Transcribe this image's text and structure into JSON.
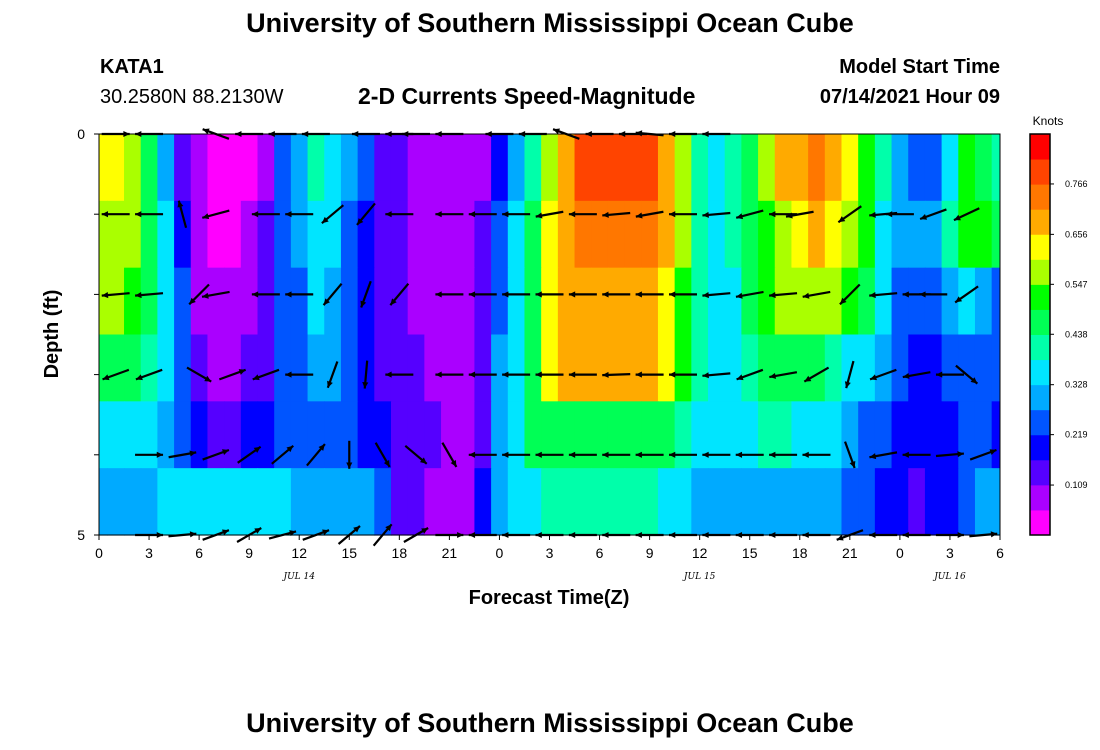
{
  "header": {
    "title": "University of Southern Mississippi Ocean Cube",
    "station": "KATA1",
    "coordinates": "30.2580N  88.2130W",
    "subtitle": "2-D Currents Speed-Magnitude",
    "model_start_label": "Model Start Time",
    "model_start_value": "07/14/2021 Hour 09"
  },
  "footer": {
    "title": "University of Southern Mississippi Ocean Cube"
  },
  "chart_data": {
    "type": "heatmap",
    "title": "2-D Currents Speed-Magnitude",
    "xlabel": "Forecast Time(Z)",
    "ylabel": "Depth (ft)",
    "x_ticks": [
      "0",
      "3",
      "6",
      "9",
      "12",
      "15",
      "18",
      "21",
      "0",
      "3",
      "6",
      "9",
      "12",
      "15",
      "18",
      "21",
      "0",
      "3",
      "6"
    ],
    "x_range_hours": [
      9,
      63
    ],
    "y_ticks": [
      "0",
      "5"
    ],
    "y_range": [
      0,
      5
    ],
    "date_labels": [
      {
        "text": "JUL 14",
        "hour": 21
      },
      {
        "text": "JUL 15",
        "hour": 45
      },
      {
        "text": "JUL 16",
        "hour": 60
      }
    ],
    "colorbar": {
      "title": "Knots",
      "ticks": [
        "0.766",
        "0.656",
        "0.547",
        "0.438",
        "0.328",
        "0.219",
        "0.109"
      ],
      "range": [
        0.0,
        0.875
      ],
      "colors": [
        "#ff00ff",
        "#aa00ff",
        "#5500ff",
        "#0000ff",
        "#0055ff",
        "#00aaff",
        "#00e5ff",
        "#00ffaa",
        "#00ff55",
        "#00ff00",
        "#aaff00",
        "#ffff00",
        "#ffaa00",
        "#ff7700",
        "#ff4400",
        "#ff0000"
      ]
    },
    "hours": [
      9,
      10,
      11,
      12,
      13,
      14,
      15,
      16,
      17,
      18,
      19,
      20,
      21,
      22,
      23,
      24,
      25,
      26,
      27,
      28,
      29,
      30,
      31,
      32,
      33,
      34,
      35,
      36,
      37,
      38,
      39,
      40,
      41,
      42,
      43,
      44,
      45,
      46,
      47,
      48,
      49,
      50,
      51,
      52,
      53,
      54,
      55,
      56,
      57,
      58,
      59,
      60,
      61,
      62,
      63
    ],
    "depth_bins": [
      0,
      1,
      2,
      3,
      4,
      5
    ],
    "speed_knots": [
      [
        0.62,
        0.62,
        0.55,
        0.45,
        0.32,
        0.15,
        0.06,
        0.02,
        0.02,
        0.04,
        0.1,
        0.22,
        0.3,
        0.4,
        0.35,
        0.28,
        0.22,
        0.16,
        0.12,
        0.1,
        0.09,
        0.08,
        0.08,
        0.1,
        0.2,
        0.3,
        0.42,
        0.58,
        0.7,
        0.78,
        0.8,
        0.82,
        0.82,
        0.78,
        0.7,
        0.58,
        0.42,
        0.35,
        0.4,
        0.48,
        0.56,
        0.66,
        0.7,
        0.72,
        0.7,
        0.64,
        0.54,
        0.4,
        0.28,
        0.22,
        0.22,
        0.35,
        0.5,
        0.48,
        0.42
      ],
      [
        0.6,
        0.6,
        0.55,
        0.46,
        0.34,
        0.18,
        0.08,
        0.04,
        0.04,
        0.06,
        0.12,
        0.22,
        0.28,
        0.36,
        0.33,
        0.26,
        0.2,
        0.15,
        0.12,
        0.1,
        0.09,
        0.08,
        0.08,
        0.12,
        0.24,
        0.34,
        0.45,
        0.62,
        0.7,
        0.72,
        0.72,
        0.74,
        0.74,
        0.72,
        0.68,
        0.55,
        0.42,
        0.36,
        0.4,
        0.46,
        0.52,
        0.6,
        0.65,
        0.66,
        0.64,
        0.58,
        0.5,
        0.38,
        0.3,
        0.28,
        0.3,
        0.4,
        0.5,
        0.5,
        0.44
      ],
      [
        0.58,
        0.58,
        0.54,
        0.46,
        0.36,
        0.22,
        0.1,
        0.06,
        0.06,
        0.08,
        0.14,
        0.22,
        0.27,
        0.34,
        0.32,
        0.26,
        0.2,
        0.15,
        0.12,
        0.1,
        0.09,
        0.08,
        0.08,
        0.12,
        0.26,
        0.36,
        0.48,
        0.64,
        0.68,
        0.69,
        0.68,
        0.69,
        0.7,
        0.68,
        0.64,
        0.52,
        0.4,
        0.34,
        0.38,
        0.44,
        0.5,
        0.55,
        0.58,
        0.58,
        0.56,
        0.5,
        0.44,
        0.34,
        0.26,
        0.24,
        0.26,
        0.3,
        0.36,
        0.3,
        0.26
      ],
      [
        0.46,
        0.46,
        0.44,
        0.4,
        0.34,
        0.24,
        0.14,
        0.1,
        0.1,
        0.12,
        0.16,
        0.22,
        0.26,
        0.3,
        0.28,
        0.24,
        0.2,
        0.16,
        0.13,
        0.11,
        0.1,
        0.09,
        0.09,
        0.14,
        0.28,
        0.36,
        0.46,
        0.62,
        0.66,
        0.67,
        0.66,
        0.67,
        0.68,
        0.66,
        0.62,
        0.5,
        0.4,
        0.34,
        0.36,
        0.4,
        0.44,
        0.46,
        0.46,
        0.44,
        0.42,
        0.38,
        0.34,
        0.28,
        0.22,
        0.2,
        0.2,
        0.22,
        0.24,
        0.24,
        0.22
      ],
      [
        0.38,
        0.38,
        0.37,
        0.34,
        0.3,
        0.24,
        0.18,
        0.16,
        0.16,
        0.18,
        0.2,
        0.22,
        0.24,
        0.26,
        0.25,
        0.23,
        0.2,
        0.17,
        0.14,
        0.12,
        0.11,
        0.1,
        0.1,
        0.16,
        0.3,
        0.38,
        0.44,
        0.48,
        0.48,
        0.48,
        0.48,
        0.48,
        0.49,
        0.48,
        0.46,
        0.42,
        0.38,
        0.34,
        0.36,
        0.38,
        0.4,
        0.4,
        0.38,
        0.36,
        0.34,
        0.3,
        0.26,
        0.22,
        0.18,
        0.17,
        0.18,
        0.2,
        0.22,
        0.22,
        0.2
      ],
      [
        0.3,
        0.3,
        0.31,
        0.32,
        0.34,
        0.36,
        0.36,
        0.35,
        0.34,
        0.34,
        0.34,
        0.33,
        0.32,
        0.3,
        0.3,
        0.3,
        0.28,
        0.22,
        0.16,
        0.12,
        0.1,
        0.09,
        0.1,
        0.18,
        0.32,
        0.36,
        0.38,
        0.4,
        0.4,
        0.4,
        0.4,
        0.4,
        0.4,
        0.4,
        0.38,
        0.36,
        0.32,
        0.3,
        0.3,
        0.3,
        0.3,
        0.3,
        0.3,
        0.3,
        0.28,
        0.26,
        0.24,
        0.2,
        0.17,
        0.16,
        0.17,
        0.2,
        0.24,
        0.28,
        0.3
      ]
    ],
    "vectors": {
      "rows": [
        {
          "depth": 0,
          "hours": [
            10,
            12,
            16,
            18,
            20,
            22,
            25,
            27,
            28,
            30,
            33,
            35,
            37,
            39,
            41,
            42,
            44,
            46
          ],
          "angles": [
            0,
            180,
            160,
            180,
            180,
            180,
            180,
            180,
            180,
            180,
            180,
            180,
            160,
            180,
            180,
            175,
            180,
            180
          ]
        },
        {
          "depth": 1,
          "hours": [
            10,
            12,
            14,
            16,
            19,
            21,
            23,
            25,
            27,
            30,
            32,
            34,
            36,
            38,
            40,
            42,
            44,
            46,
            48,
            50,
            51,
            54,
            56,
            57,
            59,
            61
          ],
          "angles": [
            180,
            180,
            105,
            195,
            180,
            180,
            220,
            230,
            180,
            180,
            180,
            180,
            190,
            180,
            185,
            190,
            180,
            185,
            195,
            180,
            190,
            215,
            185,
            180,
            200,
            205
          ]
        },
        {
          "depth": 2,
          "hours": [
            10,
            12,
            15,
            16,
            19,
            21,
            23,
            25,
            27,
            30,
            32,
            34,
            36,
            38,
            40,
            42,
            44,
            46,
            48,
            50,
            52,
            54,
            56,
            58,
            59,
            61
          ],
          "angles": [
            185,
            185,
            225,
            190,
            180,
            180,
            230,
            250,
            230,
            180,
            180,
            180,
            180,
            180,
            180,
            180,
            180,
            185,
            190,
            185,
            190,
            225,
            185,
            180,
            180,
            215
          ]
        },
        {
          "depth": 3,
          "hours": [
            10,
            12,
            15,
            17,
            19,
            21,
            23,
            25,
            27,
            30,
            32,
            34,
            36,
            38,
            40,
            42,
            44,
            46,
            48,
            50,
            52,
            54,
            56,
            58,
            60,
            61
          ],
          "angles": [
            200,
            200,
            330,
            20,
            200,
            180,
            250,
            265,
            180,
            180,
            180,
            180,
            180,
            180,
            182,
            180,
            180,
            185,
            200,
            190,
            210,
            255,
            200,
            190,
            180,
            320
          ]
        },
        {
          "depth": 4,
          "hours": [
            12,
            14,
            16,
            18,
            20,
            22,
            24,
            26,
            28,
            30,
            32,
            34,
            36,
            38,
            40,
            42,
            44,
            46,
            48,
            50,
            52,
            54,
            56,
            58,
            60,
            62
          ],
          "angles": [
            0,
            10,
            20,
            35,
            40,
            50,
            270,
            300,
            320,
            300,
            180,
            180,
            180,
            180,
            180,
            180,
            180,
            180,
            180,
            180,
            180,
            290,
            190,
            180,
            5,
            20
          ]
        },
        {
          "depth": 5,
          "hours": [
            12,
            14,
            16,
            18,
            20,
            22,
            24,
            26,
            28,
            30,
            32,
            34,
            36,
            38,
            40,
            42,
            44,
            46,
            48,
            50,
            52,
            54,
            56,
            58,
            60,
            62
          ],
          "angles": [
            0,
            5,
            20,
            30,
            15,
            20,
            40,
            50,
            30,
            0,
            180,
            180,
            180,
            180,
            180,
            180,
            180,
            180,
            180,
            180,
            180,
            200,
            180,
            180,
            0,
            5
          ]
        }
      ]
    }
  }
}
